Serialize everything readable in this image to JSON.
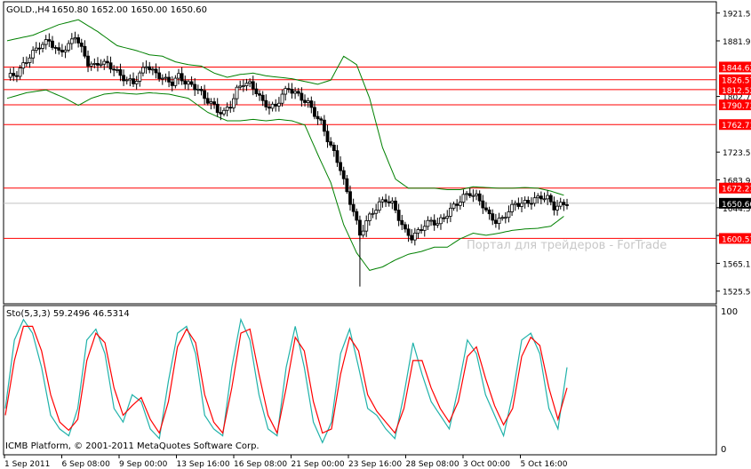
{
  "header": {
    "symbol": "GOLD.,H4",
    "ohlc": "1650.80 1652.00 1650.00 1650.60"
  },
  "subpanel": {
    "label": "Sto(5,3,3) 59.2496 46.5314",
    "levels": [
      "100",
      "0"
    ]
  },
  "footer": {
    "copyright": "ICMB Platform, © 2001-2011 MetaQuotes Software Corp."
  },
  "watermark": "Портал для трейдеров - ForTrade",
  "colors": {
    "background": "#ffffff",
    "frame": "#000000",
    "candle": "#000000",
    "bollinger": "#008000",
    "level_line": "#ff0000",
    "stoch_main": "#20b2aa",
    "stoch_signal": "#ff0000",
    "price_tag_bg": "#ff0000",
    "current_price_bg": "#000000"
  },
  "chart_data": [
    {
      "type": "candlestick",
      "title": "GOLD.,H4",
      "price_axis_ticks": [
        "1921.50",
        "1881.90",
        "1802.70",
        "1723.50",
        "1683.90",
        "1644.30",
        "1604.70",
        "1565.10",
        "1525.50"
      ],
      "ylim": [
        1510,
        1935
      ],
      "time_axis_labels": [
        "1 Sep 2011",
        "6 Sep 08:00",
        "9 Sep 00:00",
        "13 Sep 16:00",
        "16 Sep 08:00",
        "21 Sep 00:00",
        "23 Sep 16:00",
        "28 Sep 08:00",
        "3 Oct 00:00",
        "5 Oct 16:00"
      ],
      "horizontal_levels": [
        {
          "label": "1844.62",
          "value": 1844.62
        },
        {
          "label": "1826.57",
          "value": 1826.57
        },
        {
          "label": "1812.52",
          "value": 1812.52
        },
        {
          "label": "1790.73",
          "value": 1790.73
        },
        {
          "label": "1762.71",
          "value": 1762.71
        },
        {
          "label": "1672.23",
          "value": 1672.23
        },
        {
          "label": "1600.53",
          "value": 1600.53
        }
      ],
      "current_price": {
        "label": "1650.60",
        "value": 1650.6
      },
      "close_path": [
        [
          0,
          1830
        ],
        [
          3,
          1835
        ],
        [
          7,
          1860
        ],
        [
          10,
          1875
        ],
        [
          13,
          1882
        ],
        [
          16,
          1865
        ],
        [
          19,
          1875
        ],
        [
          21,
          1890
        ],
        [
          23,
          1870
        ],
        [
          25,
          1850
        ],
        [
          27,
          1846
        ],
        [
          29,
          1852
        ],
        [
          31,
          1848
        ],
        [
          33,
          1842
        ],
        [
          35,
          1832
        ],
        [
          37,
          1826
        ],
        [
          39,
          1822
        ],
        [
          41,
          1834
        ],
        [
          43,
          1848
        ],
        [
          45,
          1838
        ],
        [
          47,
          1832
        ],
        [
          49,
          1826
        ],
        [
          51,
          1822
        ],
        [
          53,
          1832
        ],
        [
          55,
          1823
        ],
        [
          57,
          1818
        ],
        [
          59,
          1814
        ],
        [
          61,
          1800
        ],
        [
          63,
          1794
        ],
        [
          65,
          1782
        ],
        [
          67,
          1780
        ],
        [
          69,
          1790
        ],
        [
          71,
          1812
        ],
        [
          73,
          1822
        ],
        [
          75,
          1820
        ],
        [
          77,
          1810
        ],
        [
          79,
          1794
        ],
        [
          81,
          1788
        ],
        [
          83,
          1788
        ],
        [
          85,
          1806
        ],
        [
          87,
          1814
        ],
        [
          89,
          1808
        ],
        [
          91,
          1800
        ],
        [
          93,
          1793
        ],
        [
          95,
          1778
        ],
        [
          97,
          1765
        ],
        [
          99,
          1742
        ],
        [
          101,
          1722
        ],
        [
          103,
          1700
        ],
        [
          105,
          1665
        ],
        [
          107,
          1640
        ],
        [
          109,
          1605
        ],
        [
          111,
          1625
        ],
        [
          113,
          1638
        ],
        [
          115,
          1650
        ],
        [
          117,
          1656
        ],
        [
          119,
          1650
        ],
        [
          121,
          1630
        ],
        [
          123,
          1610
        ],
        [
          125,
          1602
        ],
        [
          127,
          1610
        ],
        [
          129,
          1620
        ],
        [
          131,
          1625
        ],
        [
          133,
          1622
        ],
        [
          135,
          1630
        ],
        [
          137,
          1642
        ],
        [
          139,
          1650
        ],
        [
          141,
          1660
        ],
        [
          143,
          1665
        ],
        [
          145,
          1660
        ],
        [
          147,
          1648
        ],
        [
          149,
          1632
        ],
        [
          151,
          1625
        ],
        [
          153,
          1628
        ],
        [
          155,
          1640
        ],
        [
          157,
          1650
        ],
        [
          159,
          1650
        ],
        [
          161,
          1652
        ],
        [
          163,
          1656
        ],
        [
          165,
          1660
        ],
        [
          167,
          1658
        ],
        [
          169,
          1645
        ],
        [
          171,
          1648
        ],
        [
          173,
          1651
        ]
      ],
      "bollinger_upper": [
        [
          0,
          1882
        ],
        [
          8,
          1890
        ],
        [
          16,
          1905
        ],
        [
          22,
          1912
        ],
        [
          28,
          1895
        ],
        [
          34,
          1875
        ],
        [
          40,
          1868
        ],
        [
          44,
          1862
        ],
        [
          48,
          1860
        ],
        [
          52,
          1852
        ],
        [
          56,
          1848
        ],
        [
          60,
          1846
        ],
        [
          64,
          1836
        ],
        [
          68,
          1830
        ],
        [
          72,
          1834
        ],
        [
          76,
          1836
        ],
        [
          80,
          1832
        ],
        [
          84,
          1830
        ],
        [
          88,
          1828
        ],
        [
          92,
          1824
        ],
        [
          96,
          1820
        ],
        [
          100,
          1826
        ],
        [
          104,
          1860
        ],
        [
          108,
          1848
        ],
        [
          112,
          1800
        ],
        [
          116,
          1730
        ],
        [
          120,
          1685
        ],
        [
          124,
          1672
        ],
        [
          128,
          1672
        ],
        [
          132,
          1672
        ],
        [
          136,
          1670
        ],
        [
          140,
          1670
        ],
        [
          144,
          1674
        ],
        [
          148,
          1673
        ],
        [
          152,
          1672
        ],
        [
          156,
          1672
        ],
        [
          160,
          1673
        ],
        [
          164,
          1672
        ],
        [
          168,
          1668
        ],
        [
          172,
          1662
        ]
      ],
      "bollinger_lower": [
        [
          0,
          1800
        ],
        [
          6,
          1808
        ],
        [
          12,
          1812
        ],
        [
          18,
          1800
        ],
        [
          22,
          1790
        ],
        [
          26,
          1800
        ],
        [
          30,
          1806
        ],
        [
          34,
          1808
        ],
        [
          40,
          1806
        ],
        [
          44,
          1808
        ],
        [
          50,
          1806
        ],
        [
          56,
          1800
        ],
        [
          62,
          1780
        ],
        [
          68,
          1768
        ],
        [
          72,
          1768
        ],
        [
          76,
          1770
        ],
        [
          80,
          1768
        ],
        [
          84,
          1770
        ],
        [
          88,
          1768
        ],
        [
          92,
          1762
        ],
        [
          96,
          1720
        ],
        [
          100,
          1680
        ],
        [
          104,
          1620
        ],
        [
          108,
          1580
        ],
        [
          112,
          1555
        ],
        [
          116,
          1560
        ],
        [
          120,
          1570
        ],
        [
          124,
          1578
        ],
        [
          128,
          1582
        ],
        [
          132,
          1588
        ],
        [
          136,
          1588
        ],
        [
          140,
          1600
        ],
        [
          144,
          1608
        ],
        [
          148,
          1605
        ],
        [
          152,
          1608
        ],
        [
          156,
          1612
        ],
        [
          160,
          1614
        ],
        [
          164,
          1615
        ],
        [
          168,
          1618
        ],
        [
          172,
          1632
        ]
      ]
    },
    {
      "type": "line",
      "title": "Sto(5,3,3) 59.2496 46.5314",
      "ylim": [
        0,
        100
      ],
      "series": [
        {
          "name": "%K",
          "values": [
            [
              0,
              30
            ],
            [
              3,
              80
            ],
            [
              6,
              95
            ],
            [
              9,
              85
            ],
            [
              12,
              60
            ],
            [
              15,
              25
            ],
            [
              18,
              15
            ],
            [
              21,
              10
            ],
            [
              24,
              30
            ],
            [
              27,
              80
            ],
            [
              30,
              88
            ],
            [
              33,
              70
            ],
            [
              36,
              30
            ],
            [
              39,
              20
            ],
            [
              42,
              40
            ],
            [
              45,
              35
            ],
            [
              48,
              15
            ],
            [
              51,
              8
            ],
            [
              54,
              50
            ],
            [
              57,
              85
            ],
            [
              60,
              90
            ],
            [
              63,
              70
            ],
            [
              66,
              25
            ],
            [
              69,
              15
            ],
            [
              72,
              10
            ],
            [
              75,
              60
            ],
            [
              78,
              95
            ],
            [
              81,
              80
            ],
            [
              84,
              40
            ],
            [
              87,
              15
            ],
            [
              90,
              10
            ],
            [
              93,
              60
            ],
            [
              96,
              90
            ],
            [
              99,
              60
            ],
            [
              102,
              20
            ],
            [
              105,
              5
            ],
            [
              108,
              20
            ],
            [
              111,
              70
            ],
            [
              114,
              88
            ],
            [
              117,
              60
            ],
            [
              120,
              30
            ],
            [
              123,
              25
            ],
            [
              126,
              15
            ],
            [
              129,
              8
            ],
            [
              132,
              40
            ],
            [
              135,
              78
            ],
            [
              138,
              55
            ],
            [
              141,
              35
            ],
            [
              144,
              25
            ],
            [
              147,
              15
            ],
            [
              150,
              45
            ],
            [
              153,
              80
            ],
            [
              156,
              70
            ],
            [
              159,
              40
            ],
            [
              162,
              25
            ],
            [
              165,
              10
            ],
            [
              168,
              40
            ],
            [
              171,
              80
            ],
            [
              174,
              85
            ],
            [
              177,
              70
            ],
            [
              180,
              30
            ],
            [
              183,
              15
            ],
            [
              186,
              60
            ]
          ]
        },
        {
          "name": "%D",
          "values": [
            [
              0,
              25
            ],
            [
              3,
              65
            ],
            [
              6,
              90
            ],
            [
              9,
              90
            ],
            [
              12,
              72
            ],
            [
              15,
              40
            ],
            [
              18,
              20
            ],
            [
              21,
              14
            ],
            [
              24,
              22
            ],
            [
              27,
              65
            ],
            [
              30,
              85
            ],
            [
              33,
              78
            ],
            [
              36,
              45
            ],
            [
              39,
              25
            ],
            [
              42,
              32
            ],
            [
              45,
              38
            ],
            [
              48,
              22
            ],
            [
              51,
              12
            ],
            [
              54,
              35
            ],
            [
              57,
              75
            ],
            [
              60,
              88
            ],
            [
              63,
              78
            ],
            [
              66,
              40
            ],
            [
              69,
              20
            ],
            [
              72,
              12
            ],
            [
              75,
              45
            ],
            [
              78,
              85
            ],
            [
              81,
              88
            ],
            [
              84,
              55
            ],
            [
              87,
              25
            ],
            [
              90,
              12
            ],
            [
              93,
              45
            ],
            [
              96,
              82
            ],
            [
              99,
              72
            ],
            [
              102,
              35
            ],
            [
              105,
              12
            ],
            [
              108,
              15
            ],
            [
              111,
              55
            ],
            [
              114,
              82
            ],
            [
              117,
              72
            ],
            [
              120,
              40
            ],
            [
              123,
              28
            ],
            [
              126,
              20
            ],
            [
              129,
              12
            ],
            [
              132,
              30
            ],
            [
              135,
              65
            ],
            [
              138,
              65
            ],
            [
              141,
              45
            ],
            [
              144,
              30
            ],
            [
              147,
              20
            ],
            [
              150,
              35
            ],
            [
              153,
              68
            ],
            [
              156,
              75
            ],
            [
              159,
              52
            ],
            [
              162,
              32
            ],
            [
              165,
              18
            ],
            [
              168,
              30
            ],
            [
              171,
              68
            ],
            [
              174,
              82
            ],
            [
              177,
              76
            ],
            [
              180,
              45
            ],
            [
              183,
              22
            ],
            [
              186,
              45
            ]
          ]
        }
      ]
    }
  ]
}
